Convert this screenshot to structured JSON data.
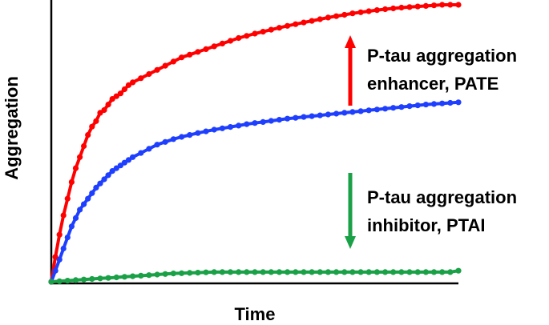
{
  "chart_data": {
    "type": "line",
    "xlabel": "Time",
    "ylabel": "Aggregation",
    "xlim": [
      0,
      100
    ],
    "ylim": [
      0,
      100
    ],
    "grid": false,
    "legend": "none",
    "series": [
      {
        "color": "#ff0000",
        "x": [
          0,
          1,
          2,
          3,
          4,
          5,
          6,
          7,
          8,
          9,
          10,
          11,
          12,
          13,
          14,
          15,
          16,
          17,
          18,
          19,
          20,
          22,
          24,
          26,
          28,
          30,
          32,
          34,
          36,
          38,
          40,
          42,
          44,
          46,
          48,
          50,
          52,
          54,
          56,
          58,
          60,
          62,
          64,
          66,
          68,
          70,
          72,
          74,
          76,
          78,
          80,
          82,
          84,
          86,
          88,
          90,
          92,
          94,
          96,
          98,
          100
        ],
        "values": [
          0,
          9,
          17,
          24,
          30,
          36,
          41,
          45,
          49,
          53,
          56,
          58,
          61,
          62,
          64,
          66,
          67,
          68,
          69.5,
          71,
          72,
          73.5,
          75,
          76.5,
          78,
          79.5,
          81,
          82,
          83,
          84,
          85,
          86,
          87,
          88,
          88.8,
          89.6,
          90.3,
          91,
          91.7,
          92.4,
          93,
          93.6,
          94.2,
          94.8,
          95.4,
          95.9,
          96.4,
          96.9,
          97.3,
          97.7,
          98.1,
          98.4,
          98.7,
          99,
          99.2,
          99.4,
          99.6,
          99.8,
          100,
          100,
          100
        ]
      },
      {
        "color": "#1f3fff",
        "x": [
          0,
          1,
          2,
          3,
          4,
          5,
          6,
          7,
          8,
          9,
          10,
          11,
          12,
          13,
          14,
          15,
          16,
          17,
          18,
          19,
          20,
          22,
          24,
          26,
          28,
          30,
          32,
          34,
          36,
          38,
          40,
          42,
          44,
          46,
          48,
          50,
          52,
          54,
          56,
          58,
          60,
          62,
          64,
          66,
          68,
          70,
          72,
          74,
          76,
          78,
          80,
          82,
          84,
          86,
          88,
          90,
          92,
          94,
          96,
          98,
          100
        ],
        "values": [
          0,
          4,
          8,
          12,
          16,
          20,
          23,
          26,
          28,
          30,
          32,
          34,
          35.5,
          37,
          38.5,
          40,
          41,
          42,
          43,
          44,
          45,
          46.5,
          48,
          49.5,
          50.5,
          51.5,
          52.3,
          53,
          53.7,
          54.3,
          54.9,
          55.4,
          55.9,
          56.4,
          56.9,
          57.3,
          57.7,
          58.1,
          58.5,
          58.9,
          59.2,
          59.5,
          59.8,
          60.1,
          60.4,
          60.7,
          61,
          61.3,
          61.6,
          61.9,
          62.2,
          62.5,
          62.8,
          63.1,
          63.4,
          63.7,
          64,
          64.2,
          64.4,
          64.6,
          64.8
        ]
      },
      {
        "color": "#1aa046",
        "x": [
          0,
          2,
          4,
          6,
          8,
          10,
          12,
          14,
          16,
          18,
          20,
          22,
          24,
          26,
          28,
          30,
          32,
          34,
          36,
          38,
          40,
          42,
          44,
          46,
          48,
          50,
          52,
          54,
          56,
          58,
          60,
          62,
          64,
          66,
          68,
          70,
          72,
          74,
          76,
          78,
          80,
          82,
          84,
          86,
          88,
          90,
          92,
          94,
          96,
          98,
          100
        ],
        "values": [
          0,
          0.2,
          0.4,
          0.6,
          0.8,
          1,
          1.2,
          1.4,
          1.6,
          1.8,
          2,
          2.2,
          2.4,
          2.6,
          2.8,
          3,
          3.1,
          3.2,
          3.3,
          3.4,
          3.5,
          3.5,
          3.5,
          3.5,
          3.5,
          3.5,
          3.5,
          3.5,
          3.5,
          3.5,
          3.5,
          3.5,
          3.5,
          3.5,
          3.5,
          3.5,
          3.5,
          3.5,
          3.5,
          3.5,
          3.5,
          3.5,
          3.5,
          3.5,
          3.5,
          3.5,
          3.5,
          3.5,
          3.5,
          3.5,
          4
        ]
      }
    ],
    "annotations": {
      "up": {
        "line1": "P-tau aggregation",
        "line2": "enhancer, PATE",
        "arrow_color": "#ff0000"
      },
      "down": {
        "line1": "P-tau aggregation",
        "line2": "inhibitor, PTAI",
        "arrow_color": "#1aa046"
      }
    }
  }
}
